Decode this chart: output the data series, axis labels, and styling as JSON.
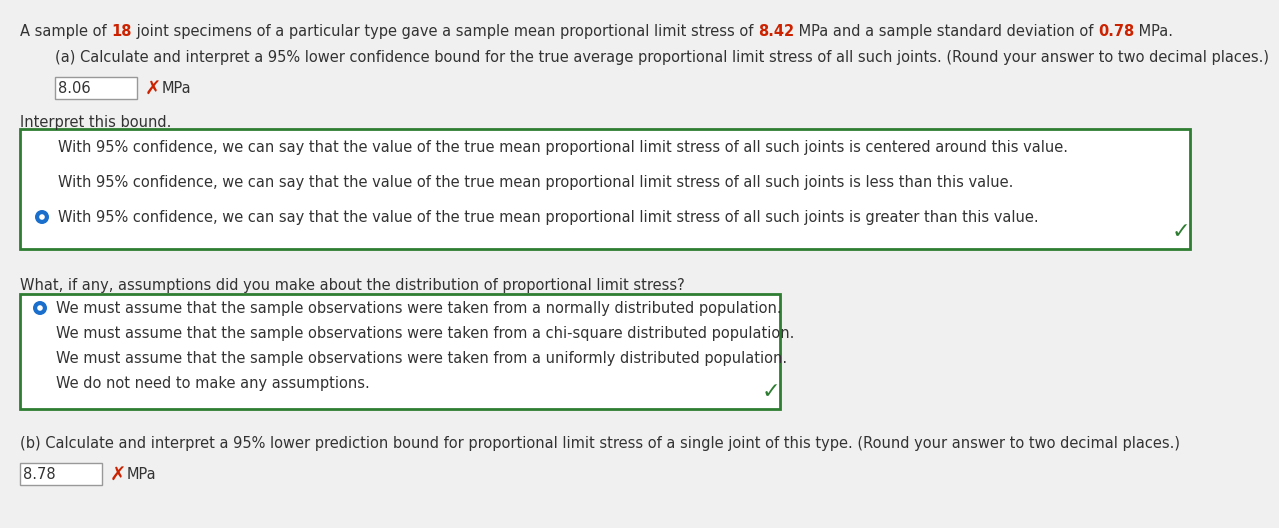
{
  "background_color": "#f0f0f0",
  "title_segments": [
    {
      "text": "A sample of ",
      "color": "#333333",
      "bold": false
    },
    {
      "text": "18",
      "color": "#cc2200",
      "bold": true
    },
    {
      "text": " joint specimens of a particular type gave a sample mean proportional limit stress of ",
      "color": "#333333",
      "bold": false
    },
    {
      "text": "8.42",
      "color": "#cc2200",
      "bold": true
    },
    {
      "text": " MPa and a sample standard deviation of ",
      "color": "#333333",
      "bold": false
    },
    {
      "text": "0.78",
      "color": "#cc2200",
      "bold": true
    },
    {
      "text": " MPa.",
      "color": "#333333",
      "bold": false
    }
  ],
  "part_a_label": "(a) Calculate and interpret a 95% lower confidence bound for the true average proportional limit stress of all such joints. (Round your answer to two decimal places.)",
  "part_a_answer": "8.06",
  "part_a_unit": "MPa",
  "interpret_label": "Interpret this bound.",
  "interpret_options": [
    "With 95% confidence, we can say that the value of the true mean proportional limit stress of all such joints is centered around this value.",
    "With 95% confidence, we can say that the value of the true mean proportional limit stress of all such joints is less than this value.",
    "With 95% confidence, we can say that the value of the true mean proportional limit stress of all such joints is greater than this value."
  ],
  "interpret_selected": 2,
  "assumptions_label": "What, if any, assumptions did you make about the distribution of proportional limit stress?",
  "assumptions_options": [
    "We must assume that the sample observations were taken from a normally distributed population.",
    "We must assume that the sample observations were taken from a chi-square distributed population.",
    "We must assume that the sample observations were taken from a uniformly distributed population.",
    "We do not need to make any assumptions."
  ],
  "assumptions_selected": 0,
  "part_b_label": "(b) Calculate and interpret a 95% lower prediction bound for proportional limit stress of a single joint of this type. (Round your answer to two decimal places.)",
  "part_b_answer": "8.78",
  "part_b_unit": "MPa",
  "green_border": "#2e7d32",
  "green_check": "#2e7d32",
  "red_x_color": "#cc2200",
  "radio_filled": "#1a6ecc",
  "radio_empty": "#888888",
  "text_color": "#333333",
  "font_size": 10.5
}
